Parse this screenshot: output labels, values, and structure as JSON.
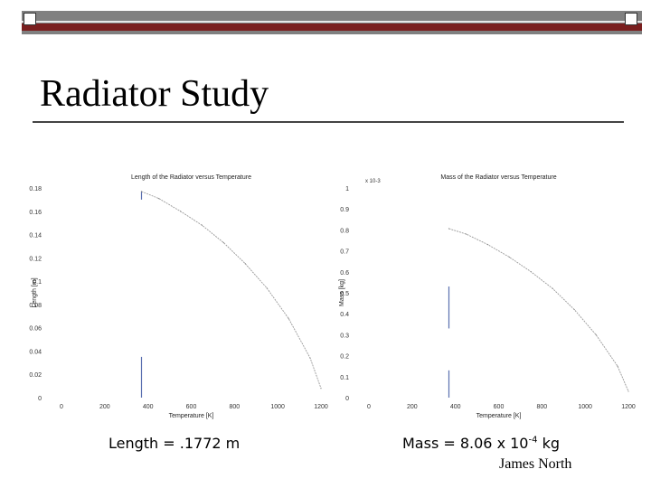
{
  "slide": {
    "title": "Radiator Study",
    "length_caption": "Length = .1772 m",
    "mass_caption_prefix": "Mass = 8.06 x 10",
    "mass_caption_exp": "-4",
    "mass_caption_unit": "kg",
    "author": "James North",
    "theme": {
      "frame_gray": "#808080",
      "frame_red": "#7a1f1f"
    }
  },
  "chart_data": [
    {
      "type": "line",
      "title": "Length of the Radiator versus Temperature",
      "xlabel": "Temperature [K]",
      "ylabel": "Length [m]",
      "xlim": [
        0,
        1200
      ],
      "ylim": [
        0,
        0.18
      ],
      "xticks": [
        0,
        200,
        400,
        600,
        800,
        1000,
        1200
      ],
      "yticks": [
        0,
        0.02,
        0.04,
        0.06,
        0.08,
        0.1,
        0.12,
        0.14,
        0.16,
        0.18
      ],
      "ytick_labels": [
        "0",
        "0.02",
        "0.04",
        "0.06",
        "0.08",
        "0.1",
        "0.12",
        "0.14",
        "0.16",
        "0.18"
      ],
      "series": [
        {
          "x": [
            370,
            450,
            550,
            650,
            750,
            850,
            950,
            1050,
            1150,
            1200
          ],
          "y": [
            0.177,
            0.171,
            0.16,
            0.148,
            0.133,
            0.115,
            0.094,
            0.068,
            0.034,
            0.008
          ]
        }
      ],
      "markers": [
        {
          "x": 370,
          "y_from": 0,
          "y_to": 0.035
        },
        {
          "x": 370,
          "y_from": 0.17,
          "y_to": 0.177
        }
      ],
      "grid": false
    },
    {
      "type": "line",
      "title": "Mass of the Radiator versus Temperature",
      "xlabel": "Temperature [K]",
      "ylabel": "Mass [kg]",
      "y_multiplier": "x 10-3",
      "xlim": [
        0,
        1200
      ],
      "ylim": [
        0,
        1
      ],
      "xticks": [
        0,
        200,
        400,
        600,
        800,
        1000,
        1200
      ],
      "yticks": [
        0,
        0.1,
        0.2,
        0.3,
        0.4,
        0.5,
        0.6,
        0.7,
        0.8,
        0.9,
        1
      ],
      "ytick_labels": [
        "0",
        "0.1",
        "0.2",
        "0.3",
        "0.4",
        "0.5",
        "0.6",
        "0.7",
        "0.8",
        "0.9",
        "1"
      ],
      "series": [
        {
          "x": [
            370,
            450,
            550,
            650,
            750,
            850,
            950,
            1050,
            1150,
            1200
          ],
          "y": [
            0.806,
            0.78,
            0.73,
            0.67,
            0.6,
            0.52,
            0.42,
            0.3,
            0.15,
            0.03
          ]
        }
      ],
      "markers": [
        {
          "x": 370,
          "y_from": 0,
          "y_to": 0.13
        },
        {
          "x": 370,
          "y_from": 0.33,
          "y_to": 0.53
        }
      ],
      "grid": false
    }
  ]
}
